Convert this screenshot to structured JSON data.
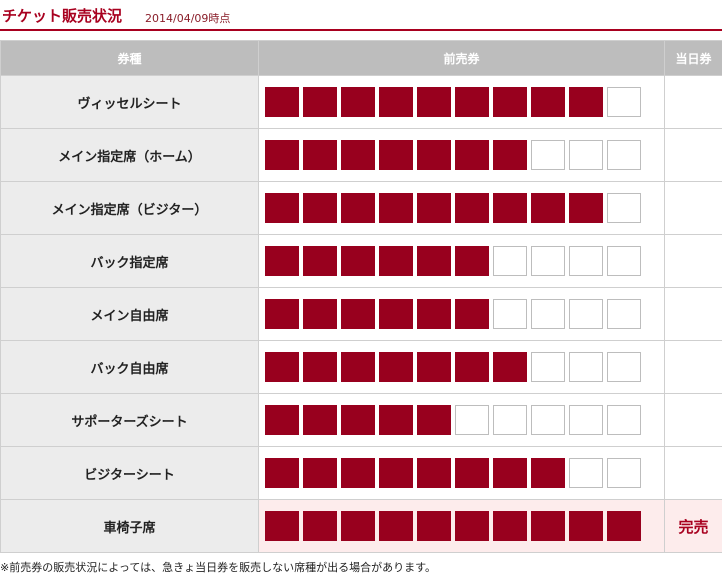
{
  "header": {
    "title": "チケット販売状況",
    "date": "2014/04/09時点"
  },
  "columns": {
    "type": "券種",
    "advance": "前売券",
    "today": "当日券"
  },
  "rows": [
    {
      "name": "ヴィッセルシート",
      "filled": 9,
      "total": 10,
      "today": ""
    },
    {
      "name": "メイン指定席（ホーム）",
      "filled": 7,
      "total": 10,
      "today": ""
    },
    {
      "name": "メイン指定席（ビジター）",
      "filled": 9,
      "total": 10,
      "today": ""
    },
    {
      "name": "バック指定席",
      "filled": 6,
      "total": 10,
      "today": ""
    },
    {
      "name": "メイン自由席",
      "filled": 6,
      "total": 10,
      "today": ""
    },
    {
      "name": "バック自由席",
      "filled": 7,
      "total": 10,
      "today": ""
    },
    {
      "name": "サポーターズシート",
      "filled": 5,
      "total": 10,
      "today": ""
    },
    {
      "name": "ビジターシート",
      "filled": 8,
      "total": 10,
      "today": ""
    },
    {
      "name": "車椅子席",
      "filled": 10,
      "total": 10,
      "today": "完売"
    }
  ],
  "colors": {
    "accent": "#a8001f",
    "filled_block": "#98001e",
    "header_bg": "#bdbdbd",
    "soldout_bg": "#fdecec"
  },
  "footer": {
    "note": "※前売券の販売状況によっては、急きょ当日券を販売しない席種が出る場合があります。"
  }
}
